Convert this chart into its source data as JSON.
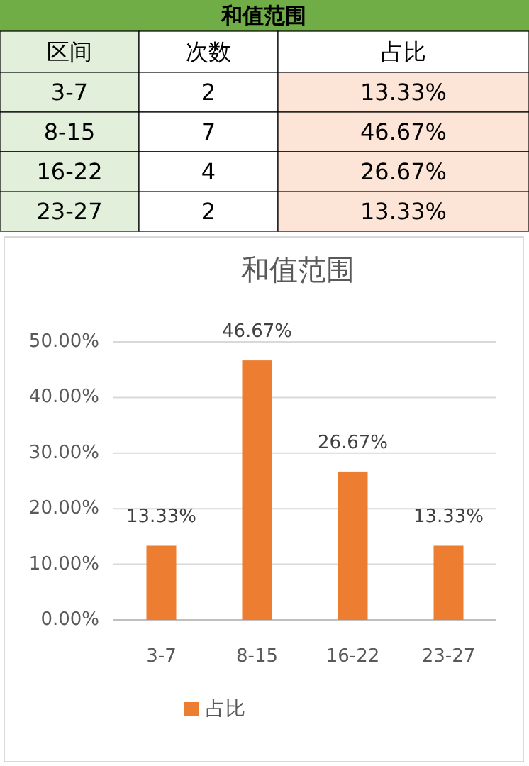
{
  "chart_data": [
    {
      "type": "other",
      "title": "和值范围",
      "xlabel": "区间",
      "categories": [
        "3-7",
        "8-15",
        "16-22",
        "23-27"
      ],
      "data_labels": true,
      "series": [
        {
          "name": "次数",
          "values": [
            2,
            7,
            4,
            2
          ]
        },
        {
          "name": "占比",
          "values": [
            13.33,
            46.67,
            26.67,
            13.33
          ],
          "value_labels": [
            "13.33%",
            "46.67%",
            "26.67%",
            "13.33%"
          ]
        }
      ]
    },
    {
      "type": "bar",
      "title": "和值范围",
      "categories": [
        "3-7",
        "8-15",
        "16-22",
        "23-27"
      ],
      "series": [
        {
          "name": "占比",
          "color": "#ed7d31",
          "values": [
            13.33,
            46.67,
            26.67,
            13.33
          ],
          "value_labels": [
            "13.33%",
            "46.67%",
            "26.67%",
            "13.33%"
          ]
        }
      ],
      "ylim": [
        0,
        50
      ],
      "yticks": [
        {
          "value": 0,
          "label": "0.00%"
        },
        {
          "value": 10,
          "label": "10.00%"
        },
        {
          "value": 20,
          "label": "20.00%"
        },
        {
          "value": 30,
          "label": "30.00%"
        },
        {
          "value": 40,
          "label": "40.00%"
        },
        {
          "value": 50,
          "label": "50.00%"
        }
      ],
      "grid": "y",
      "legend": "bottom"
    }
  ]
}
